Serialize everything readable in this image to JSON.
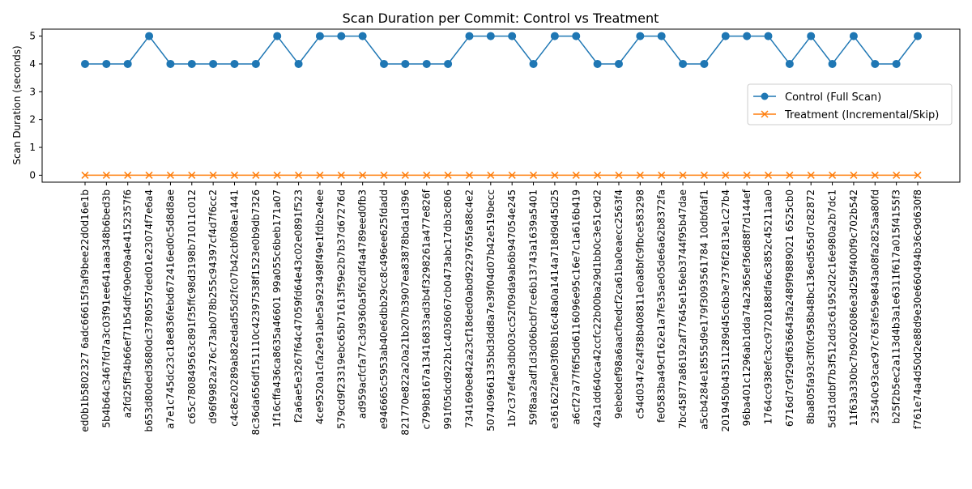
{
  "chart_data": {
    "type": "line",
    "title": "Scan Duration per Commit: Control vs Treatment",
    "xlabel": "",
    "ylabel": "Scan Duration (seconds)",
    "ylim": [
      -0.25,
      5.25
    ],
    "yticks": [
      "0",
      "1",
      "2",
      "3",
      "4",
      "5"
    ],
    "grid": false,
    "legend_position": "right",
    "categories": [
      "ed0b1b5802327 6adc66615f3af9bee22d0d16e1b",
      "5b4b64c3467fd7a3c03f91ee641aaa348b6bed3b",
      "a2fd25ff34b66ef71b54dfc90e09a4e4152357f6",
      "b653d80ded3680dc3780557ded01e23074f7e6a4",
      "a7e1c745dc23c18e836febd672416ed0c5d8d8ae",
      "c65c780849563c891f35ffc98d3198b71011c012",
      "d96f9982a276c73ab078b255c94397cf4d7f6cc2",
      "c4c8e20289ab82edad55d2fc07b42cbf08ae1441",
      "8c36da656df151110c42397538f1523e0b9db7326",
      "1f16cffa436ca8635a46601 99a055c6beb171a07",
      "f2a6ae5e3267f64c47059fd64e43c02e0891f523",
      "4ce9520a1cfa2e91abe5a923498f49e1fdb2e4ee",
      "579cd9f23319ebc65b71613f59e2b7b37d67276d",
      "ad959acfcfa77c3d9360a5f62df4a4789eed0fb3",
      "e946665c5953ab40e6dbb29cc8c496ee625fdadd",
      "821770e822a20a21b207b3907ea83878bda1d396",
      "c799b8167a13416833ad3b4f3298261a477e826f",
      "991f05dcd922b1c4036067cb0473abc17db3c806",
      "7341690e842a23cf18ded0abd9229765fa88c4e2",
      "507409661335bd3dd8a7e39f04d07b42e519becc",
      "1b7c37ef4e3db003cc52f09da9ab6b947054e245",
      "59f8aa2adf1d3d06bcbf7ce6b13743a1639a5401",
      "e361622fae03f08b16c48a0a1414a718d9d45d25",
      "a6cf27a77f6f5dd6116096e95c16e7c1a616b419",
      "42a1dd640ca42ccfc22b00ba29d1bb0c3e51c9d2",
      "9ebebdef98a6aacfbedcf2ca61ba0eaecc2563f4",
      "c54d0347e24f38b408811e0a8bfc9fbce583298",
      "fe0583ba49cf162e1a7fe35ae05de6a62b8372fa",
      "7bc45877a86192af77645e156eb3744f95b47dae",
      "a5cb4284e18555d9e179f3093561784 10dbfdaf1",
      "2019450b43511289d45c6b3e7376f2813e1c27b4",
      "96ba401c1296ab1dda74a2365ef36d88f7d144ef",
      "1764cc938efc3cc9720188dfa6c3852c45211aa0",
      "6716d7c9f29df636643fa2489f9889021 6525cb0",
      "8ba805fa93c3f0fc958b48bc136ed565d7c82872",
      "5d31ddbf7b3f512dd3c61952d2c16e980a2b7dc1",
      "11f63a330bc7b9026086e3d259f400f9c702b542",
      "23540c93cac97c763fe59e843a08fa2825aa80fd",
      "b25f2b5ec2a113d4b3a1e6311f617a015f4155f3",
      "f761e74a4d50d2e88d9e30e660494b36c9d630f8"
    ],
    "series": [
      {
        "name": "Control (Full Scan)",
        "color": "#1f77b4",
        "marker": "circle",
        "values": [
          4,
          4,
          4,
          5,
          4,
          4,
          4,
          4,
          4,
          5,
          4,
          5,
          5,
          5,
          4,
          4,
          4,
          4,
          5,
          5,
          5,
          4,
          5,
          5,
          4,
          4,
          5,
          5,
          4,
          4,
          5,
          5,
          5,
          4,
          5,
          4,
          5,
          4,
          4,
          5
        ]
      },
      {
        "name": "Treatment (Incremental/Skip)",
        "color": "#ff7f0e",
        "marker": "x",
        "values": [
          0,
          0,
          0,
          0,
          0,
          0,
          0,
          0,
          0,
          0,
          0,
          0,
          0,
          0,
          0,
          0,
          0,
          0,
          0,
          0,
          0,
          0,
          0,
          0,
          0,
          0,
          0,
          0,
          0,
          0,
          0,
          0,
          0,
          0,
          0,
          0,
          0,
          0,
          0,
          0
        ]
      }
    ]
  }
}
